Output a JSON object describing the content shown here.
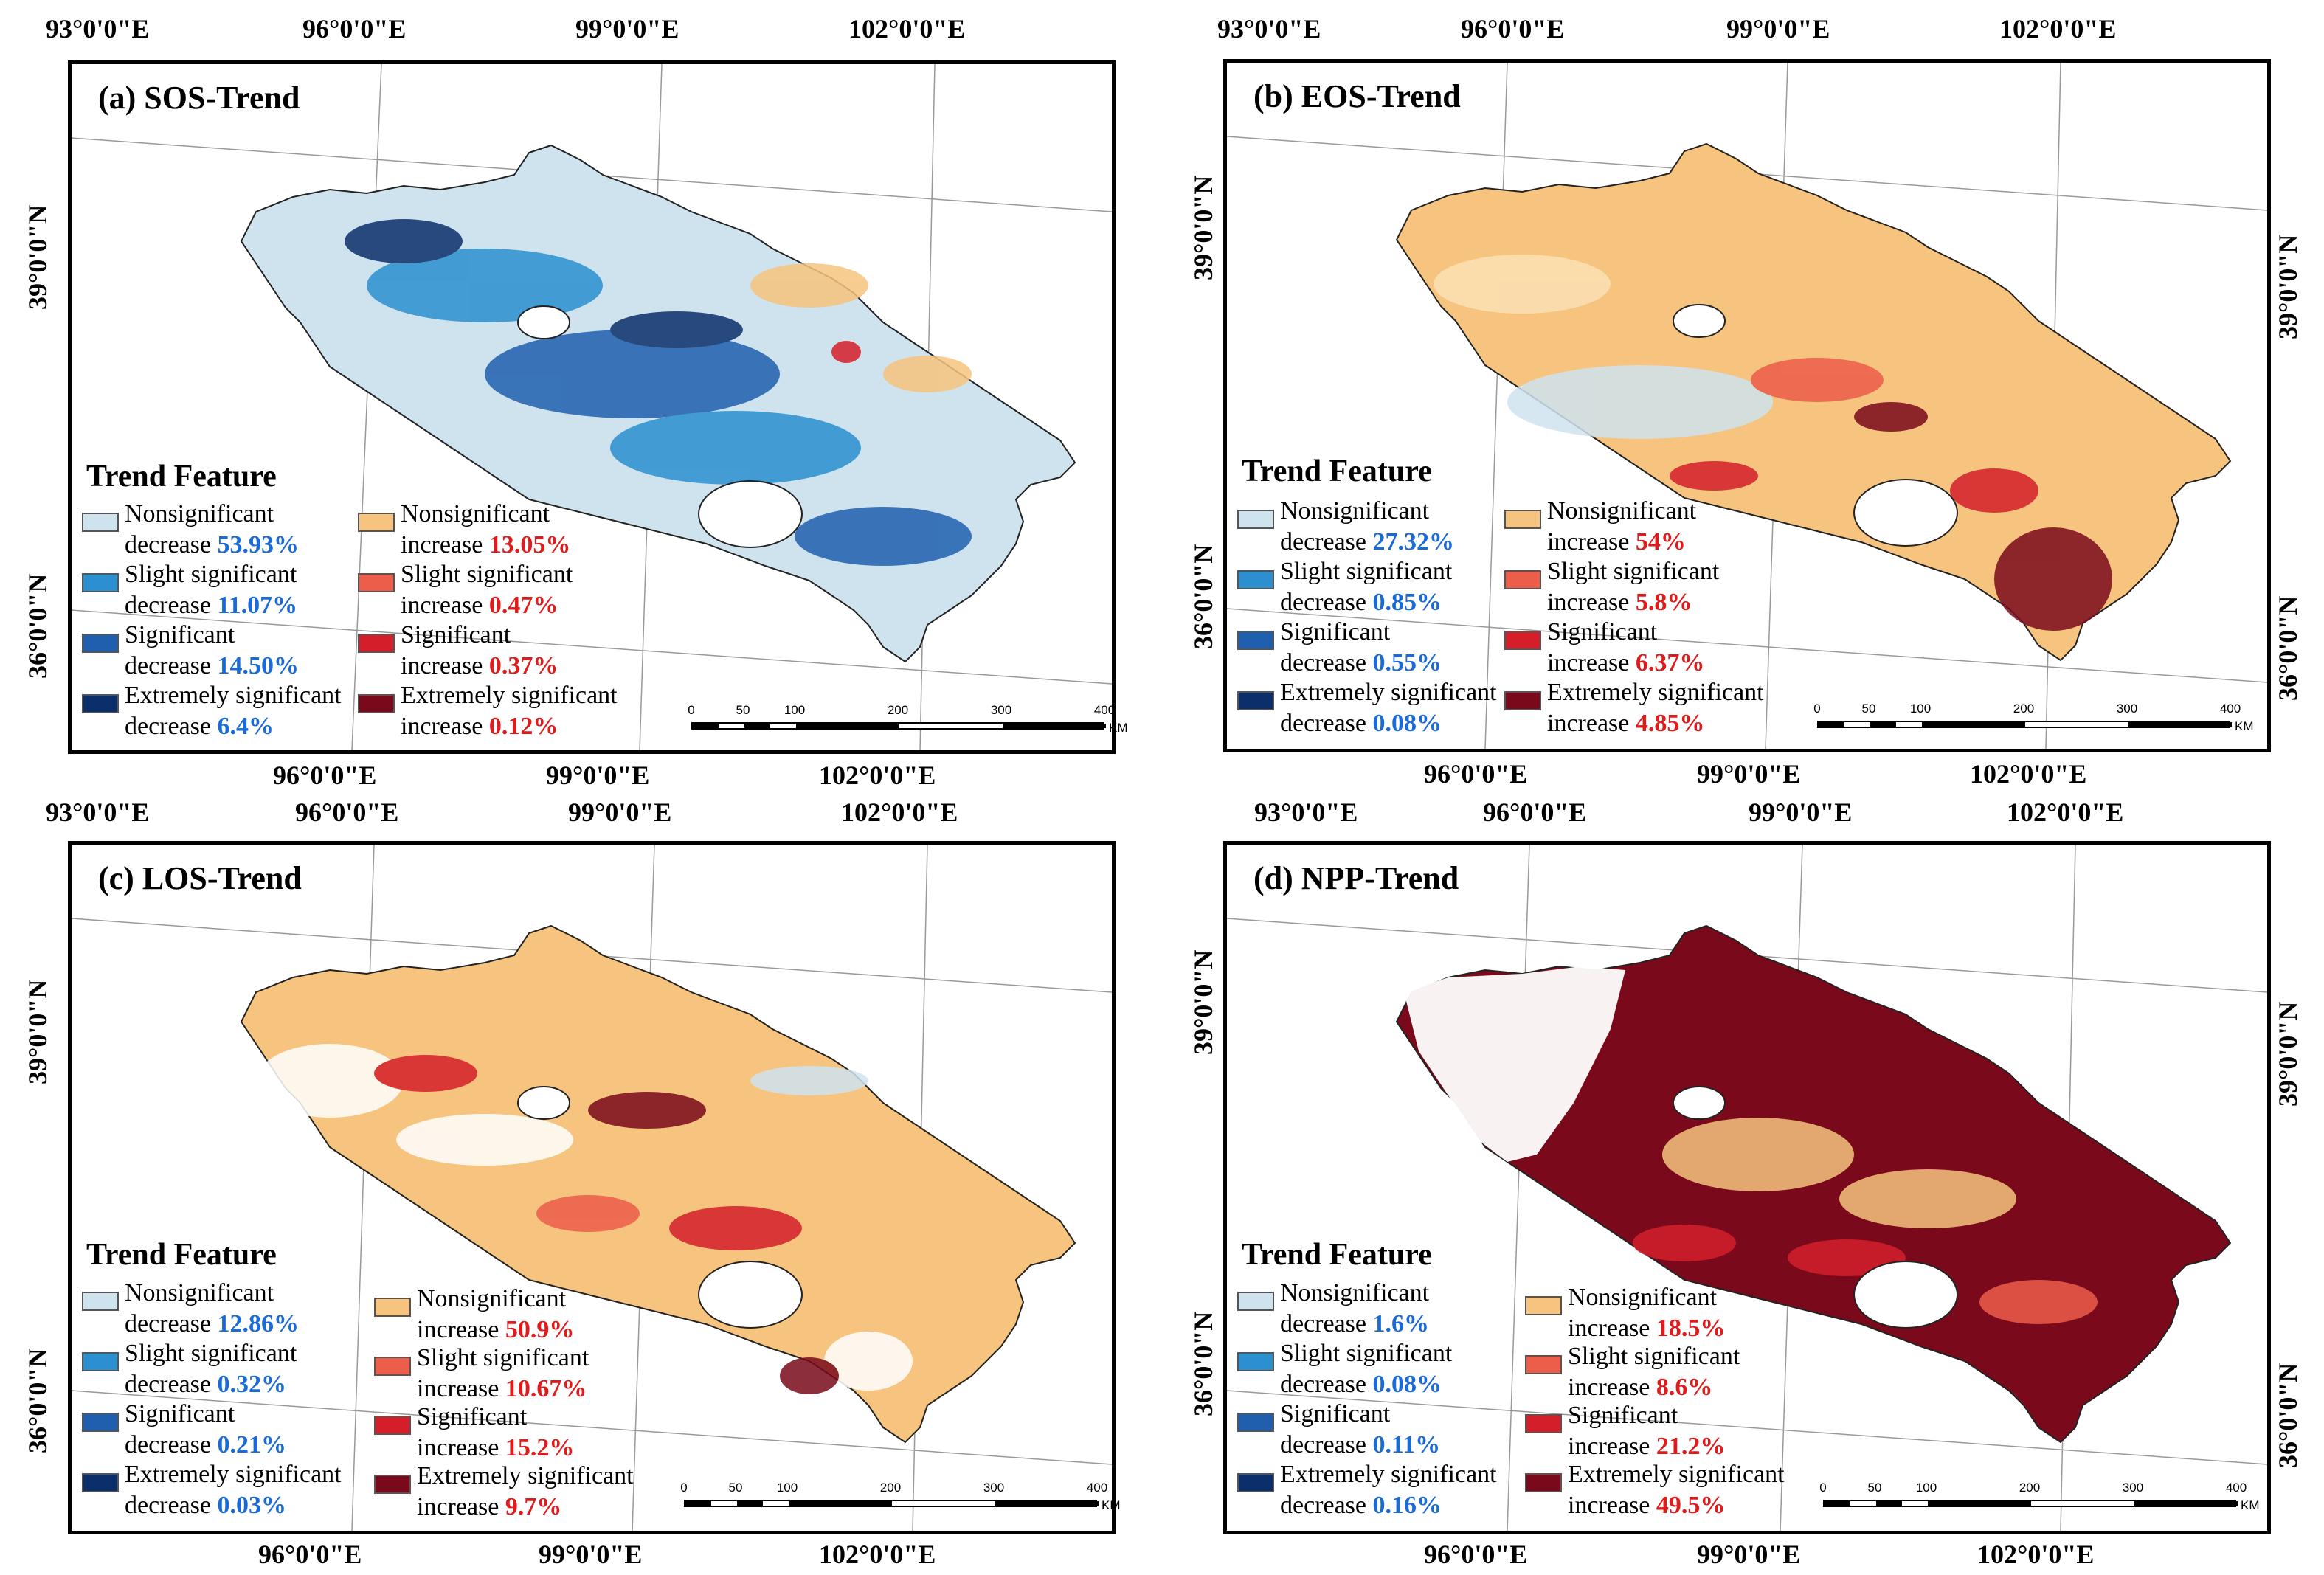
{
  "coordinate_labels": {
    "lon_93": "93°0'0\"E",
    "lon_96": "96°0'0\"E",
    "lon_99": "99°0'0\"E",
    "lon_102": "102°0'0\"E",
    "lat_39": "39°0'0\"N",
    "lat_36": "36°0'0\"N"
  },
  "legend_title": "Trend Feature",
  "class_names": {
    "nonsig": "Nonsignificant",
    "slight": "Slight significant",
    "sig": "Significant",
    "extreme": "Extremely significant",
    "decrease": "decrease",
    "increase": "increase"
  },
  "colors": {
    "nonsig_decrease": "#cfe3ee",
    "slight_decrease": "#2b8fd0",
    "sig_decrease": "#1f5fae",
    "extreme_decrease": "#0b2f6b",
    "nonsig_increase": "#f6c47e",
    "slight_increase": "#ec5d4a",
    "sig_increase": "#d41f2a",
    "extreme_increase": "#7a0a1b",
    "decrease_text": "#1a6ad8",
    "increase_text": "#e01b1b"
  },
  "scale_bar": {
    "ticks": [
      "0",
      "50",
      "100",
      "200",
      "300",
      "400"
    ],
    "unit": "KM"
  },
  "panels": [
    {
      "title": "(a) SOS-Trend",
      "decrease": [
        "53.93%",
        "11.07%",
        "14.50%",
        "6.4%"
      ],
      "increase": [
        "13.05%",
        "0.47%",
        "0.37%",
        "0.12%"
      ]
    },
    {
      "title": "(b) EOS-Trend",
      "decrease": [
        "27.32%",
        "0.85%",
        "0.55%",
        "0.08%"
      ],
      "increase": [
        "54%",
        "5.8%",
        "6.37%",
        "4.85%"
      ]
    },
    {
      "title": "(c) LOS-Trend",
      "decrease": [
        "12.86%",
        "0.32%",
        "0.21%",
        "0.03%"
      ],
      "increase": [
        "50.9%",
        "10.67%",
        "15.2%",
        "9.7%"
      ]
    },
    {
      "title": "(d) NPP-Trend",
      "decrease": [
        "1.6%",
        "0.08%",
        "0.11%",
        "0.16%"
      ],
      "increase": [
        "18.5%",
        "8.6%",
        "21.2%",
        "49.5%"
      ]
    }
  ]
}
